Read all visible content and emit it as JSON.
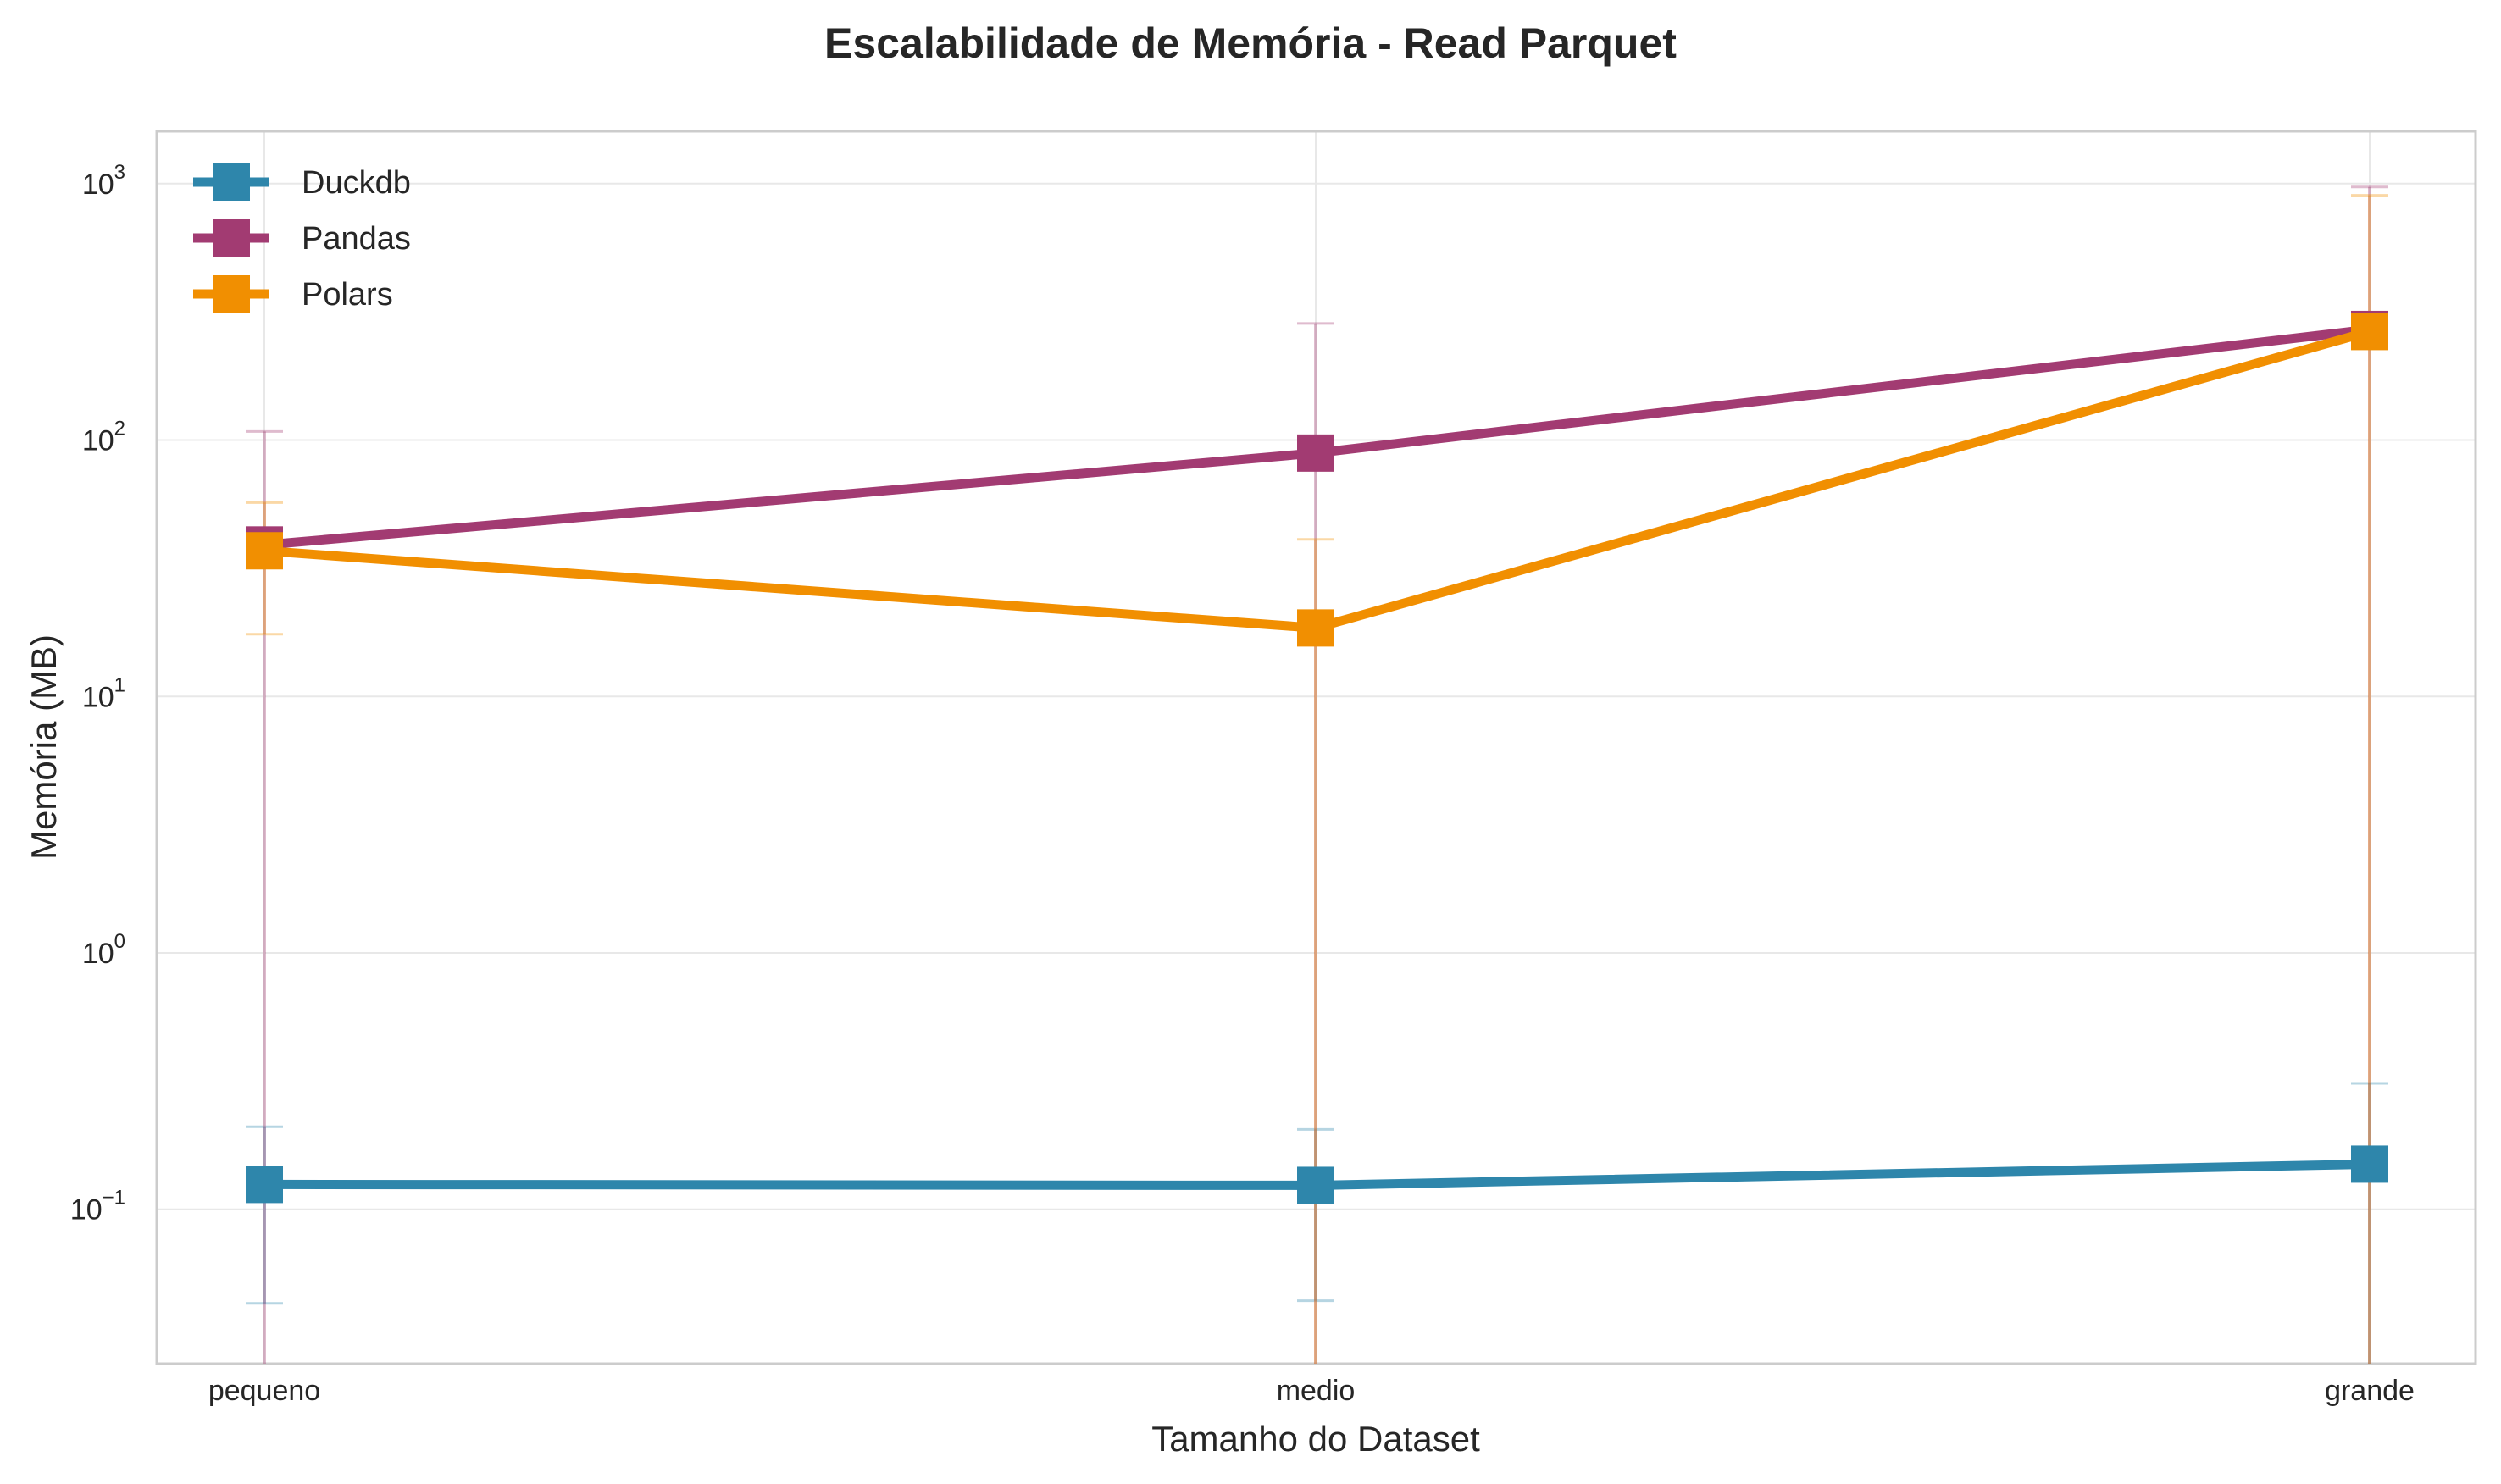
{
  "chart_data": {
    "type": "line",
    "title": "Escalabilidade de Memória - Read Parquet",
    "xlabel": "Tamanho do Dataset",
    "ylabel": "Memória (MB)",
    "categories": [
      "pequeno",
      "medio",
      "grande"
    ],
    "yscale": "log",
    "ylim": [
      0.025,
      1600
    ],
    "yticks": [
      {
        "value": 0.1,
        "base": "10",
        "exp": "−1"
      },
      {
        "value": 1,
        "base": "10",
        "exp": "0"
      },
      {
        "value": 10,
        "base": "10",
        "exp": "1"
      },
      {
        "value": 100,
        "base": "10",
        "exp": "2"
      },
      {
        "value": 1000,
        "base": "10",
        "exp": "3"
      }
    ],
    "grid": true,
    "legend_position": "top-left",
    "series": [
      {
        "name": "Duckdb",
        "color": "#2E86AB",
        "values": [
          0.125,
          0.124,
          0.15
        ],
        "error_low": [
          0.043,
          0.044,
          0.02
        ],
        "error_high": [
          0.21,
          0.205,
          0.31
        ]
      },
      {
        "name": "Pandas",
        "color": "#A23B72",
        "values": [
          39,
          89,
          270
        ],
        "error_low": [
          0.02,
          0.02,
          0.02
        ],
        "error_high": [
          108,
          285,
          970
        ]
      },
      {
        "name": "Polars",
        "color": "#F18F01",
        "values": [
          37,
          18.5,
          265
        ],
        "error_low": [
          17.5,
          0.02,
          0.02
        ],
        "error_high": [
          57,
          41,
          900
        ]
      }
    ]
  }
}
